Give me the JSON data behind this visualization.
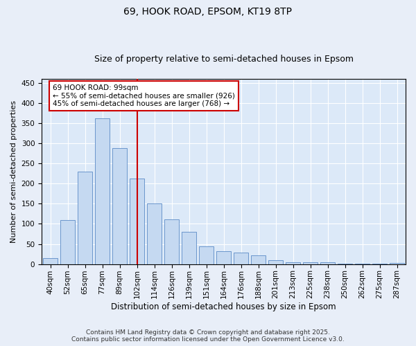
{
  "title1": "69, HOOK ROAD, EPSOM, KT19 8TP",
  "title2": "Size of property relative to semi-detached houses in Epsom",
  "xlabel": "Distribution of semi-detached houses by size in Epsom",
  "ylabel": "Number of semi-detached properties",
  "categories": [
    "40sqm",
    "52sqm",
    "65sqm",
    "77sqm",
    "89sqm",
    "102sqm",
    "114sqm",
    "126sqm",
    "139sqm",
    "151sqm",
    "164sqm",
    "176sqm",
    "188sqm",
    "201sqm",
    "213sqm",
    "225sqm",
    "238sqm",
    "250sqm",
    "262sqm",
    "275sqm",
    "287sqm"
  ],
  "values": [
    15,
    109,
    230,
    362,
    288,
    213,
    150,
    112,
    80,
    44,
    32,
    28,
    22,
    9,
    4,
    5,
    5,
    2,
    1,
    1,
    3
  ],
  "bar_color": "#c5d9f1",
  "bar_edge_color": "#5a8ac6",
  "vline_x": 5,
  "vline_color": "#cc0000",
  "annotation_text": "69 HOOK ROAD: 99sqm\n← 55% of semi-detached houses are smaller (926)\n45% of semi-detached houses are larger (768) →",
  "annotation_box_color": "#ffffff",
  "annotation_box_edge": "#cc0000",
  "ylim": [
    0,
    460
  ],
  "yticks": [
    0,
    50,
    100,
    150,
    200,
    250,
    300,
    350,
    400,
    450
  ],
  "background_color": "#dce9f8",
  "fig_background_color": "#e8eef8",
  "footer_text": "Contains HM Land Registry data © Crown copyright and database right 2025.\nContains public sector information licensed under the Open Government Licence v3.0.",
  "title1_fontsize": 10,
  "title2_fontsize": 9,
  "xlabel_fontsize": 8.5,
  "ylabel_fontsize": 8,
  "tick_fontsize": 7.5,
  "footer_fontsize": 6.5
}
